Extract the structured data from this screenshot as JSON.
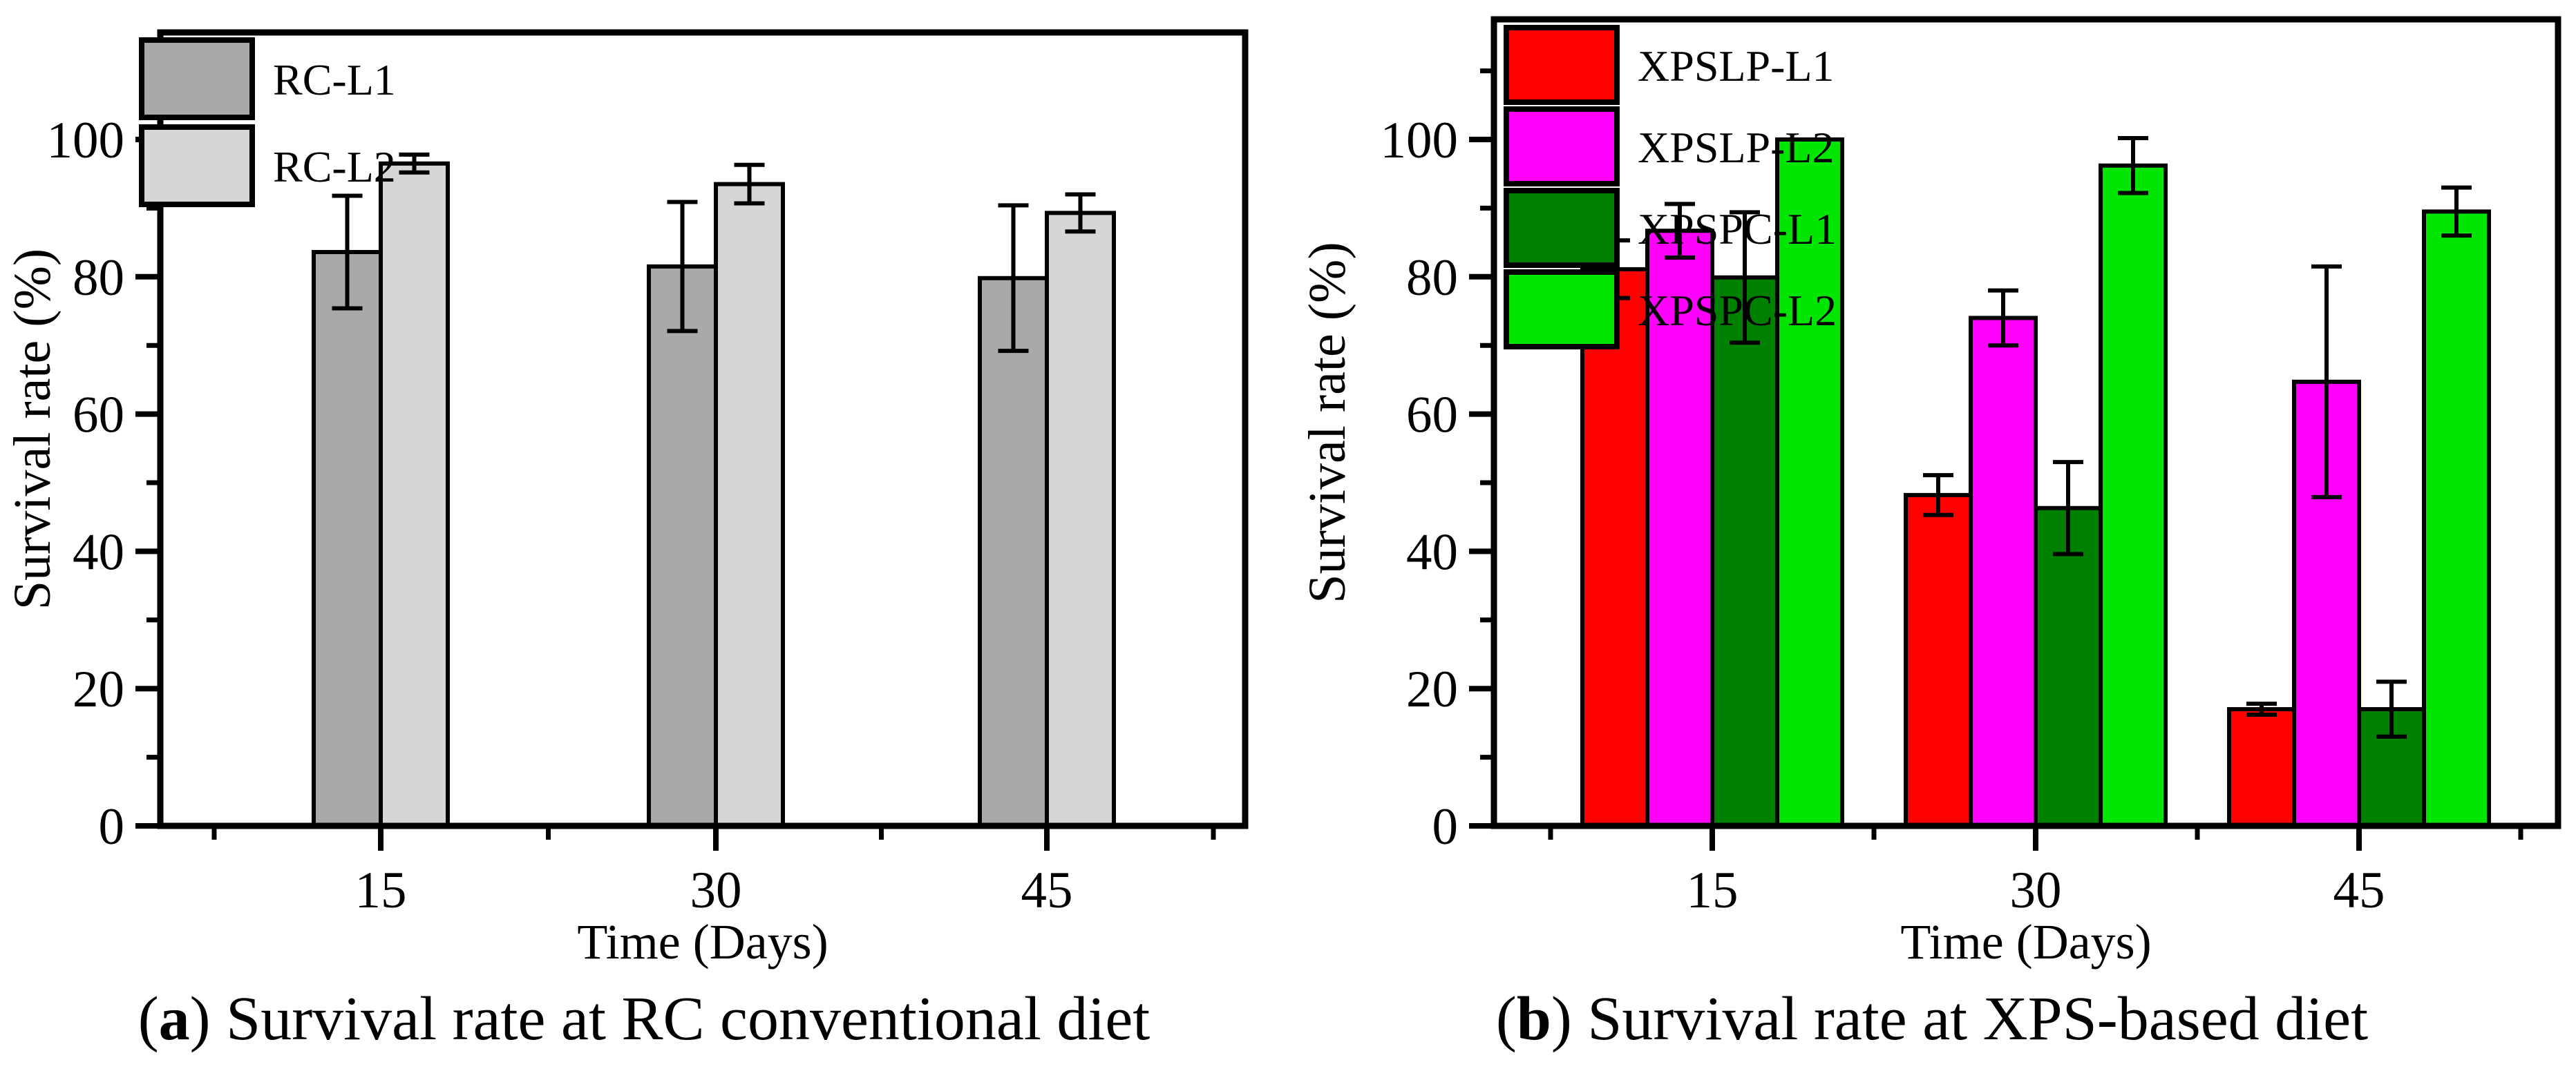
{
  "captions": [
    {
      "pre": "(",
      "letter": "a",
      "rest": ") Survival rate at RC conventional diet"
    },
    {
      "pre": "(",
      "letter": "b",
      "rest": ") Survival rate at XPS-based diet"
    }
  ],
  "chart_data": [
    {
      "type": "bar",
      "panel": "a",
      "title": "",
      "xlabel": "Time (Days)",
      "ylabel": "Survival rate (%)",
      "categories": [
        "15",
        "30",
        "45"
      ],
      "ylim": [
        0,
        115
      ],
      "yticks": [
        0,
        20,
        40,
        60,
        80,
        100
      ],
      "minor_yticks": [
        10,
        30,
        50,
        70,
        90,
        110
      ],
      "grid": false,
      "legend_position": "top-left-inside",
      "series": [
        {
          "name": "RC-L1",
          "color": "#a9a9a9",
          "values": [
            83.6,
            81.5,
            79.8
          ],
          "errors": [
            8.2,
            9.4,
            10.6
          ]
        },
        {
          "name": "RC-L2",
          "color": "#d6d6d6",
          "values": [
            96.5,
            93.5,
            89.3
          ],
          "errors": [
            1.3,
            2.8,
            2.7
          ]
        }
      ]
    },
    {
      "type": "bar",
      "panel": "b",
      "title": "",
      "xlabel": "Time (Days)",
      "ylabel": "Survival rate (%)",
      "categories": [
        "15",
        "30",
        "45"
      ],
      "ylim": [
        0,
        117
      ],
      "yticks": [
        0,
        20,
        40,
        60,
        80,
        100
      ],
      "minor_yticks": [
        10,
        30,
        50,
        70,
        90,
        110
      ],
      "grid": false,
      "legend_position": "top-left-inside",
      "series": [
        {
          "name": "XPSLP-L1",
          "color": "#ff0000",
          "values": [
            81.1,
            48.2,
            17.0
          ],
          "errors": [
            4.2,
            2.9,
            0.8
          ]
        },
        {
          "name": "XPSLP-L2",
          "color": "#ff00ff",
          "values": [
            86.7,
            74.0,
            64.7
          ],
          "errors": [
            3.9,
            4.0,
            16.8
          ]
        },
        {
          "name": "XPSPC-L1",
          "color": "#008000",
          "values": [
            79.9,
            46.3,
            17.0
          ],
          "errors": [
            9.5,
            6.7,
            4.0
          ]
        },
        {
          "name": "XPSPC-L2",
          "color": "#00e600",
          "values": [
            100.0,
            96.2,
            89.5
          ],
          "errors": [
            0,
            4.0,
            3.5
          ]
        }
      ]
    }
  ]
}
